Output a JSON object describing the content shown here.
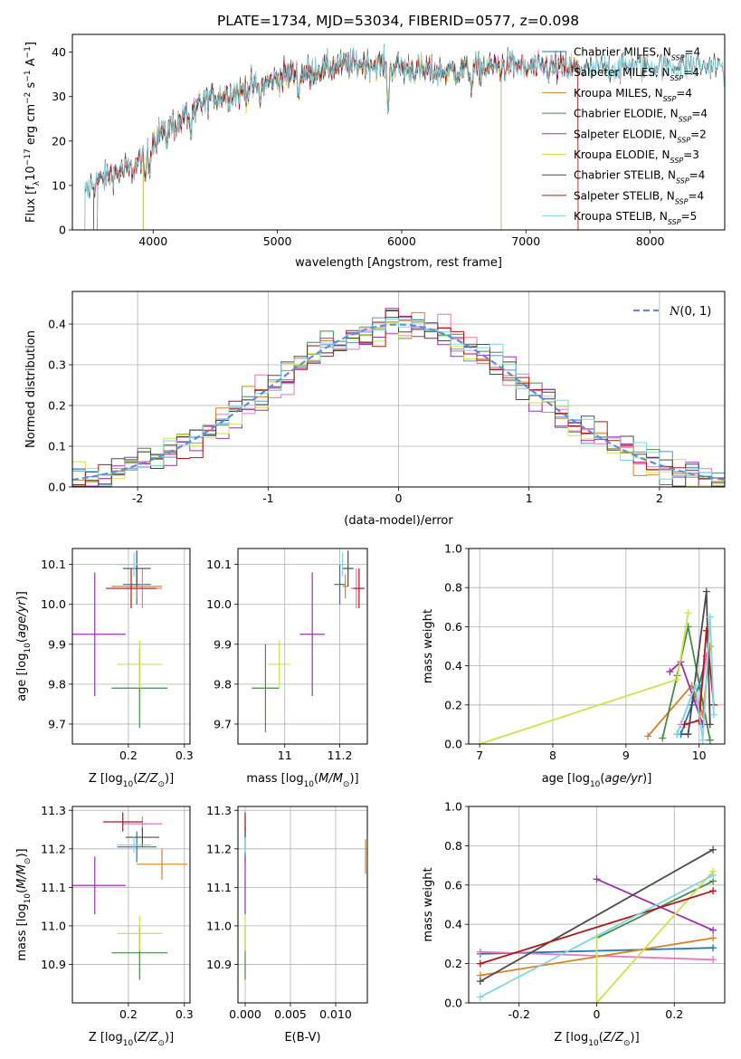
{
  "figure": {
    "title": "PLATE=1734, MJD=53034, FIBERID=0577, z=0.098"
  },
  "chart_data": [
    {
      "id": "spectrum",
      "type": "line",
      "title": "PLATE=1734, MJD=53034, FIBERID=0577, z=0.098",
      "xlabel": "wavelength [Angstrom, rest frame]",
      "ylabel": "Flux [f_λ10^-17 erg cm^-2 s^-1 A^-1]",
      "xlim": [
        3350,
        8600
      ],
      "ylim": [
        0,
        44
      ],
      "xticks": [
        4000,
        5000,
        6000,
        7000,
        8000
      ],
      "yticks": [
        0,
        10,
        20,
        30,
        40
      ],
      "legend_position": "right",
      "series": [
        {
          "name": "Chabrier MILES, N_SSP=4",
          "color": "#1f77b4",
          "start": 3550,
          "end": 7420
        },
        {
          "name": "Salpeter MILES, N_SSP=4",
          "color": "#e377c2",
          "start": 3550,
          "end": 7420
        },
        {
          "name": "Kroupa MILES, N_SSP=4",
          "color": "#d98324",
          "start": 3520,
          "end": 7420
        },
        {
          "name": "Chabrier ELODIE, N_SSP=4",
          "color": "#4a8a4a",
          "start": 3920,
          "end": 6800
        },
        {
          "name": "Salpeter ELODIE, N_SSP=2",
          "color": "#9b30b0",
          "start": 3920,
          "end": 6800
        },
        {
          "name": "Kroupa ELODIE, N_SSP=3",
          "color": "#cde34a",
          "start": 3920,
          "end": 6800
        },
        {
          "name": "Chabrier STELIB, N_SSP=4",
          "color": "#4a4a4a",
          "start": 3450,
          "end": 8700
        },
        {
          "name": "Salpeter STELIB, N_SSP=4",
          "color": "#b01818",
          "start": 3520,
          "end": 7420
        },
        {
          "name": "Kroupa STELIB, N_SSP=5",
          "color": "#7fd6e0",
          "start": 3450,
          "end": 8700
        }
      ],
      "continuum": {
        "x": [
          3450,
          3550,
          3700,
          3850,
          3950,
          4050,
          4200,
          4350,
          4500,
          4700,
          4900,
          5100,
          5300,
          5500,
          5700,
          5900,
          6100,
          6300,
          6500,
          6700,
          6900,
          7100,
          7300,
          7500,
          7700,
          7900,
          8100,
          8300,
          8500
        ],
        "y": [
          9,
          11,
          13,
          14,
          18,
          22,
          24,
          28,
          30,
          31,
          33,
          35,
          36,
          37,
          37.5,
          37,
          36,
          35.5,
          36,
          36.5,
          37,
          36.5,
          36.5,
          36,
          36.5,
          37,
          37,
          37,
          37
        ]
      }
    },
    {
      "id": "residuals",
      "type": "line",
      "xlabel": "(data-model)/error",
      "ylabel": "Normed distribution",
      "xlim": [
        -2.5,
        2.5
      ],
      "ylim": [
        0,
        0.48
      ],
      "xticks": [
        -2,
        -1,
        0,
        1,
        2
      ],
      "yticks": [
        0.0,
        0.1,
        0.2,
        0.3,
        0.4
      ],
      "legend": [
        {
          "name": "N(0,1)",
          "style": "dashed",
          "color": "#5b8fd9"
        }
      ],
      "legend_position": "top-right",
      "bins": {
        "start": -2.5,
        "width": 0.1,
        "count": 50
      }
    },
    {
      "id": "age_vs_Z",
      "type": "scatter",
      "xlabel": "Z [log10(Z/Z⊙)]",
      "ylabel": "age [log10(age/yr)]",
      "xlim": [
        0.1,
        0.31
      ],
      "ylim": [
        9.65,
        10.14
      ],
      "xticks": [
        0.2,
        0.3
      ],
      "yticks": [
        9.7,
        9.8,
        9.9,
        10.0,
        10.1
      ],
      "points": [
        {
          "x": 0.215,
          "y": 10.05,
          "xerr": 0.025,
          "yerr": 0.05,
          "color": "#1f77b4"
        },
        {
          "x": 0.225,
          "y": 10.04,
          "xerr": 0.035,
          "yerr": 0.05,
          "color": "#e377c2"
        },
        {
          "x": 0.215,
          "y": 10.045,
          "xerr": 0.045,
          "yerr": 0.03,
          "color": "#d98324"
        },
        {
          "x": 0.22,
          "y": 9.79,
          "xerr": 0.05,
          "yerr": 0.1,
          "color": "#4a8a4a"
        },
        {
          "x": 0.14,
          "y": 9.925,
          "xerr": 0.055,
          "yerr": 0.155,
          "color": "#9b30b0"
        },
        {
          "x": 0.22,
          "y": 9.85,
          "xerr": 0.04,
          "yerr": 0.06,
          "color": "#cde34a"
        },
        {
          "x": 0.215,
          "y": 10.09,
          "xerr": 0.025,
          "yerr": 0.045,
          "color": "#4a4a4a"
        },
        {
          "x": 0.205,
          "y": 10.04,
          "xerr": 0.045,
          "yerr": 0.05,
          "color": "#b01818"
        },
        {
          "x": 0.21,
          "y": 10.1,
          "xerr": 0.03,
          "yerr": 0.03,
          "color": "#7fd6e0"
        }
      ]
    },
    {
      "id": "age_vs_mass",
      "type": "scatter",
      "xlabel": "mass [log10(M/M⊙)]",
      "ylabel": "",
      "xlim": [
        10.83,
        11.3
      ],
      "ylim": [
        9.65,
        10.14
      ],
      "xticks": [
        11.0,
        11.2
      ],
      "yticks": [
        9.7,
        9.8,
        9.9,
        10.0,
        10.1
      ],
      "points": [
        {
          "x": 11.2,
          "y": 10.05,
          "xerr": 0.02,
          "yerr": 0.05,
          "color": "#1f77b4"
        },
        {
          "x": 11.26,
          "y": 10.04,
          "xerr": 0.02,
          "yerr": 0.05,
          "color": "#e377c2"
        },
        {
          "x": 11.22,
          "y": 10.045,
          "xerr": 0.01,
          "yerr": 0.03,
          "color": "#d98324"
        },
        {
          "x": 10.93,
          "y": 9.79,
          "xerr": 0.05,
          "yerr": 0.11,
          "color": "#4a8a4a"
        },
        {
          "x": 11.1,
          "y": 9.925,
          "xerr": 0.045,
          "yerr": 0.155,
          "color": "#9b30b0"
        },
        {
          "x": 10.98,
          "y": 9.85,
          "xerr": 0.04,
          "yerr": 0.06,
          "color": "#cde34a"
        },
        {
          "x": 11.23,
          "y": 10.09,
          "xerr": 0.02,
          "yerr": 0.045,
          "color": "#4a4a4a"
        },
        {
          "x": 11.27,
          "y": 10.04,
          "xerr": 0.02,
          "yerr": 0.05,
          "color": "#b01818"
        },
        {
          "x": 11.21,
          "y": 10.1,
          "xerr": 0.02,
          "yerr": 0.03,
          "color": "#7fd6e0"
        }
      ]
    },
    {
      "id": "mass_weight_vs_age",
      "type": "line",
      "xlabel": "age [log10(age/yr)]",
      "ylabel": "mass weight",
      "xlim": [
        6.85,
        10.35
      ],
      "ylim": [
        0,
        1
      ],
      "xticks": [
        7,
        8,
        9,
        10
      ],
      "yticks": [
        0.0,
        0.2,
        0.4,
        0.6,
        0.8,
        1.0
      ],
      "series": [
        {
          "color": "#1f77b4",
          "x": [
            9.75,
            9.9,
            10.0,
            10.1
          ],
          "y": [
            0.05,
            0.2,
            0.3,
            0.45
          ]
        },
        {
          "color": "#e377c2",
          "x": [
            9.75,
            9.9,
            10.0,
            10.1
          ],
          "y": [
            0.1,
            0.25,
            0.2,
            0.45
          ]
        },
        {
          "color": "#d98324",
          "x": [
            9.3,
            9.9,
            10.05,
            10.15
          ],
          "y": [
            0.04,
            0.3,
            0.15,
            0.5
          ]
        },
        {
          "color": "#4a8a4a",
          "x": [
            9.5,
            9.7,
            9.85,
            10.15
          ],
          "y": [
            0.03,
            0.35,
            0.6,
            0.02
          ]
        },
        {
          "color": "#9b30b0",
          "x": [
            9.6,
            9.75,
            10.05
          ],
          "y": [
            0.37,
            0.42,
            0.1
          ]
        },
        {
          "color": "#cde34a",
          "x": [
            7.0,
            9.7,
            9.85
          ],
          "y": [
            0.0,
            0.33,
            0.67
          ]
        },
        {
          "color": "#4a4a4a",
          "x": [
            9.7,
            9.85,
            10.1,
            10.15
          ],
          "y": [
            0.05,
            0.05,
            0.78,
            0.1
          ]
        },
        {
          "color": "#b01818",
          "x": [
            9.8,
            10.0,
            10.1,
            10.2
          ],
          "y": [
            0.1,
            0.12,
            0.58,
            0.2
          ]
        },
        {
          "color": "#7fd6e0",
          "x": [
            9.7,
            9.95,
            10.05,
            10.15,
            10.2
          ],
          "y": [
            0.05,
            0.3,
            0.02,
            0.65,
            0.15
          ]
        }
      ]
    },
    {
      "id": "mass_vs_Z",
      "type": "scatter",
      "xlabel": "Z [log10(Z/Z⊙)]",
      "ylabel": "mass [log10(M/M⊙)]",
      "xlim": [
        0.1,
        0.31
      ],
      "ylim": [
        10.8,
        11.31
      ],
      "xticks": [
        0.2,
        0.3
      ],
      "yticks": [
        10.9,
        11.0,
        11.1,
        11.2,
        11.3
      ],
      "points": [
        {
          "x": 0.215,
          "y": 11.205,
          "xerr": 0.035,
          "yerr": 0.04,
          "color": "#1f77b4"
        },
        {
          "x": 0.225,
          "y": 11.265,
          "xerr": 0.035,
          "yerr": 0.02,
          "color": "#e377c2"
        },
        {
          "x": 0.26,
          "y": 11.16,
          "xerr": 0.045,
          "yerr": 0.04,
          "color": "#d98324"
        },
        {
          "x": 0.22,
          "y": 10.93,
          "xerr": 0.05,
          "yerr": 0.07,
          "color": "#4a8a4a"
        },
        {
          "x": 0.14,
          "y": 11.105,
          "xerr": 0.055,
          "yerr": 0.075,
          "color": "#9b30b0"
        },
        {
          "x": 0.22,
          "y": 10.98,
          "xerr": 0.04,
          "yerr": 0.045,
          "color": "#cde34a"
        },
        {
          "x": 0.225,
          "y": 11.23,
          "xerr": 0.03,
          "yerr": 0.025,
          "color": "#4a4a4a"
        },
        {
          "x": 0.19,
          "y": 11.27,
          "xerr": 0.035,
          "yerr": 0.025,
          "color": "#b01818"
        },
        {
          "x": 0.21,
          "y": 11.21,
          "xerr": 0.03,
          "yerr": 0.02,
          "color": "#7fd6e0"
        }
      ]
    },
    {
      "id": "mass_vs_ebv",
      "type": "scatter",
      "xlabel": "E(B-V)",
      "ylabel": "",
      "xlim": [
        -0.0008,
        0.0135
      ],
      "ylim": [
        10.8,
        11.31
      ],
      "xticks": [
        0.0,
        0.005,
        0.01
      ],
      "xticklabels": [
        "0.000",
        "0.005",
        "0.010"
      ],
      "yticks": [
        10.9,
        11.0,
        11.1,
        11.2,
        11.3
      ],
      "points": [
        {
          "x": 0.0,
          "y": 11.205,
          "yerr": 0.04,
          "color": "#1f77b4"
        },
        {
          "x": 0.0,
          "y": 11.265,
          "yerr": 0.02,
          "color": "#e377c2"
        },
        {
          "x": 0.0133,
          "y": 11.18,
          "yerr": 0.045,
          "color": "#d98324"
        },
        {
          "x": 0.0,
          "y": 10.93,
          "yerr": 0.07,
          "color": "#4a8a4a"
        },
        {
          "x": 0.0,
          "y": 11.105,
          "yerr": 0.075,
          "color": "#9b30b0"
        },
        {
          "x": 0.0,
          "y": 10.98,
          "yerr": 0.045,
          "color": "#cde34a"
        },
        {
          "x": 0.0,
          "y": 11.23,
          "yerr": 0.025,
          "color": "#4a4a4a"
        },
        {
          "x": 0.0,
          "y": 11.27,
          "yerr": 0.025,
          "color": "#b01818"
        },
        {
          "x": 0.0,
          "y": 11.21,
          "yerr": 0.02,
          "color": "#7fd6e0"
        }
      ]
    },
    {
      "id": "mass_weight_vs_Z",
      "type": "line",
      "xlabel": "Z [log10(Z/Z⊙)]",
      "ylabel": "mass weight",
      "xlim": [
        -0.33,
        0.33
      ],
      "ylim": [
        0,
        1
      ],
      "xticks": [
        -0.2,
        0.0,
        0.2
      ],
      "yticks": [
        0.0,
        0.2,
        0.4,
        0.6,
        0.8,
        1.0
      ],
      "series": [
        {
          "color": "#1f77b4",
          "x": [
            -0.3,
            0.3
          ],
          "y": [
            0.25,
            0.28
          ]
        },
        {
          "color": "#e377c2",
          "x": [
            -0.3,
            0.3
          ],
          "y": [
            0.26,
            0.22
          ]
        },
        {
          "color": "#d98324",
          "x": [
            -0.3,
            0.3
          ],
          "y": [
            0.14,
            0.33
          ]
        },
        {
          "color": "#4a8a4a",
          "x": [
            0.0,
            0.3
          ],
          "y": [
            0.33,
            0.62
          ]
        },
        {
          "color": "#9b30b0",
          "x": [
            0.0,
            0.3
          ],
          "y": [
            0.63,
            0.37
          ]
        },
        {
          "color": "#cde34a",
          "x": [
            0.0,
            0.0,
            0.3
          ],
          "y": [
            0.33,
            0.0,
            0.67
          ]
        },
        {
          "color": "#4a4a4a",
          "x": [
            -0.3,
            0.3
          ],
          "y": [
            0.11,
            0.78
          ]
        },
        {
          "color": "#b01818",
          "x": [
            -0.3,
            0.3
          ],
          "y": [
            0.2,
            0.57
          ]
        },
        {
          "color": "#7fd6e0",
          "x": [
            -0.3,
            0.3
          ],
          "y": [
            0.03,
            0.65
          ]
        }
      ]
    }
  ]
}
